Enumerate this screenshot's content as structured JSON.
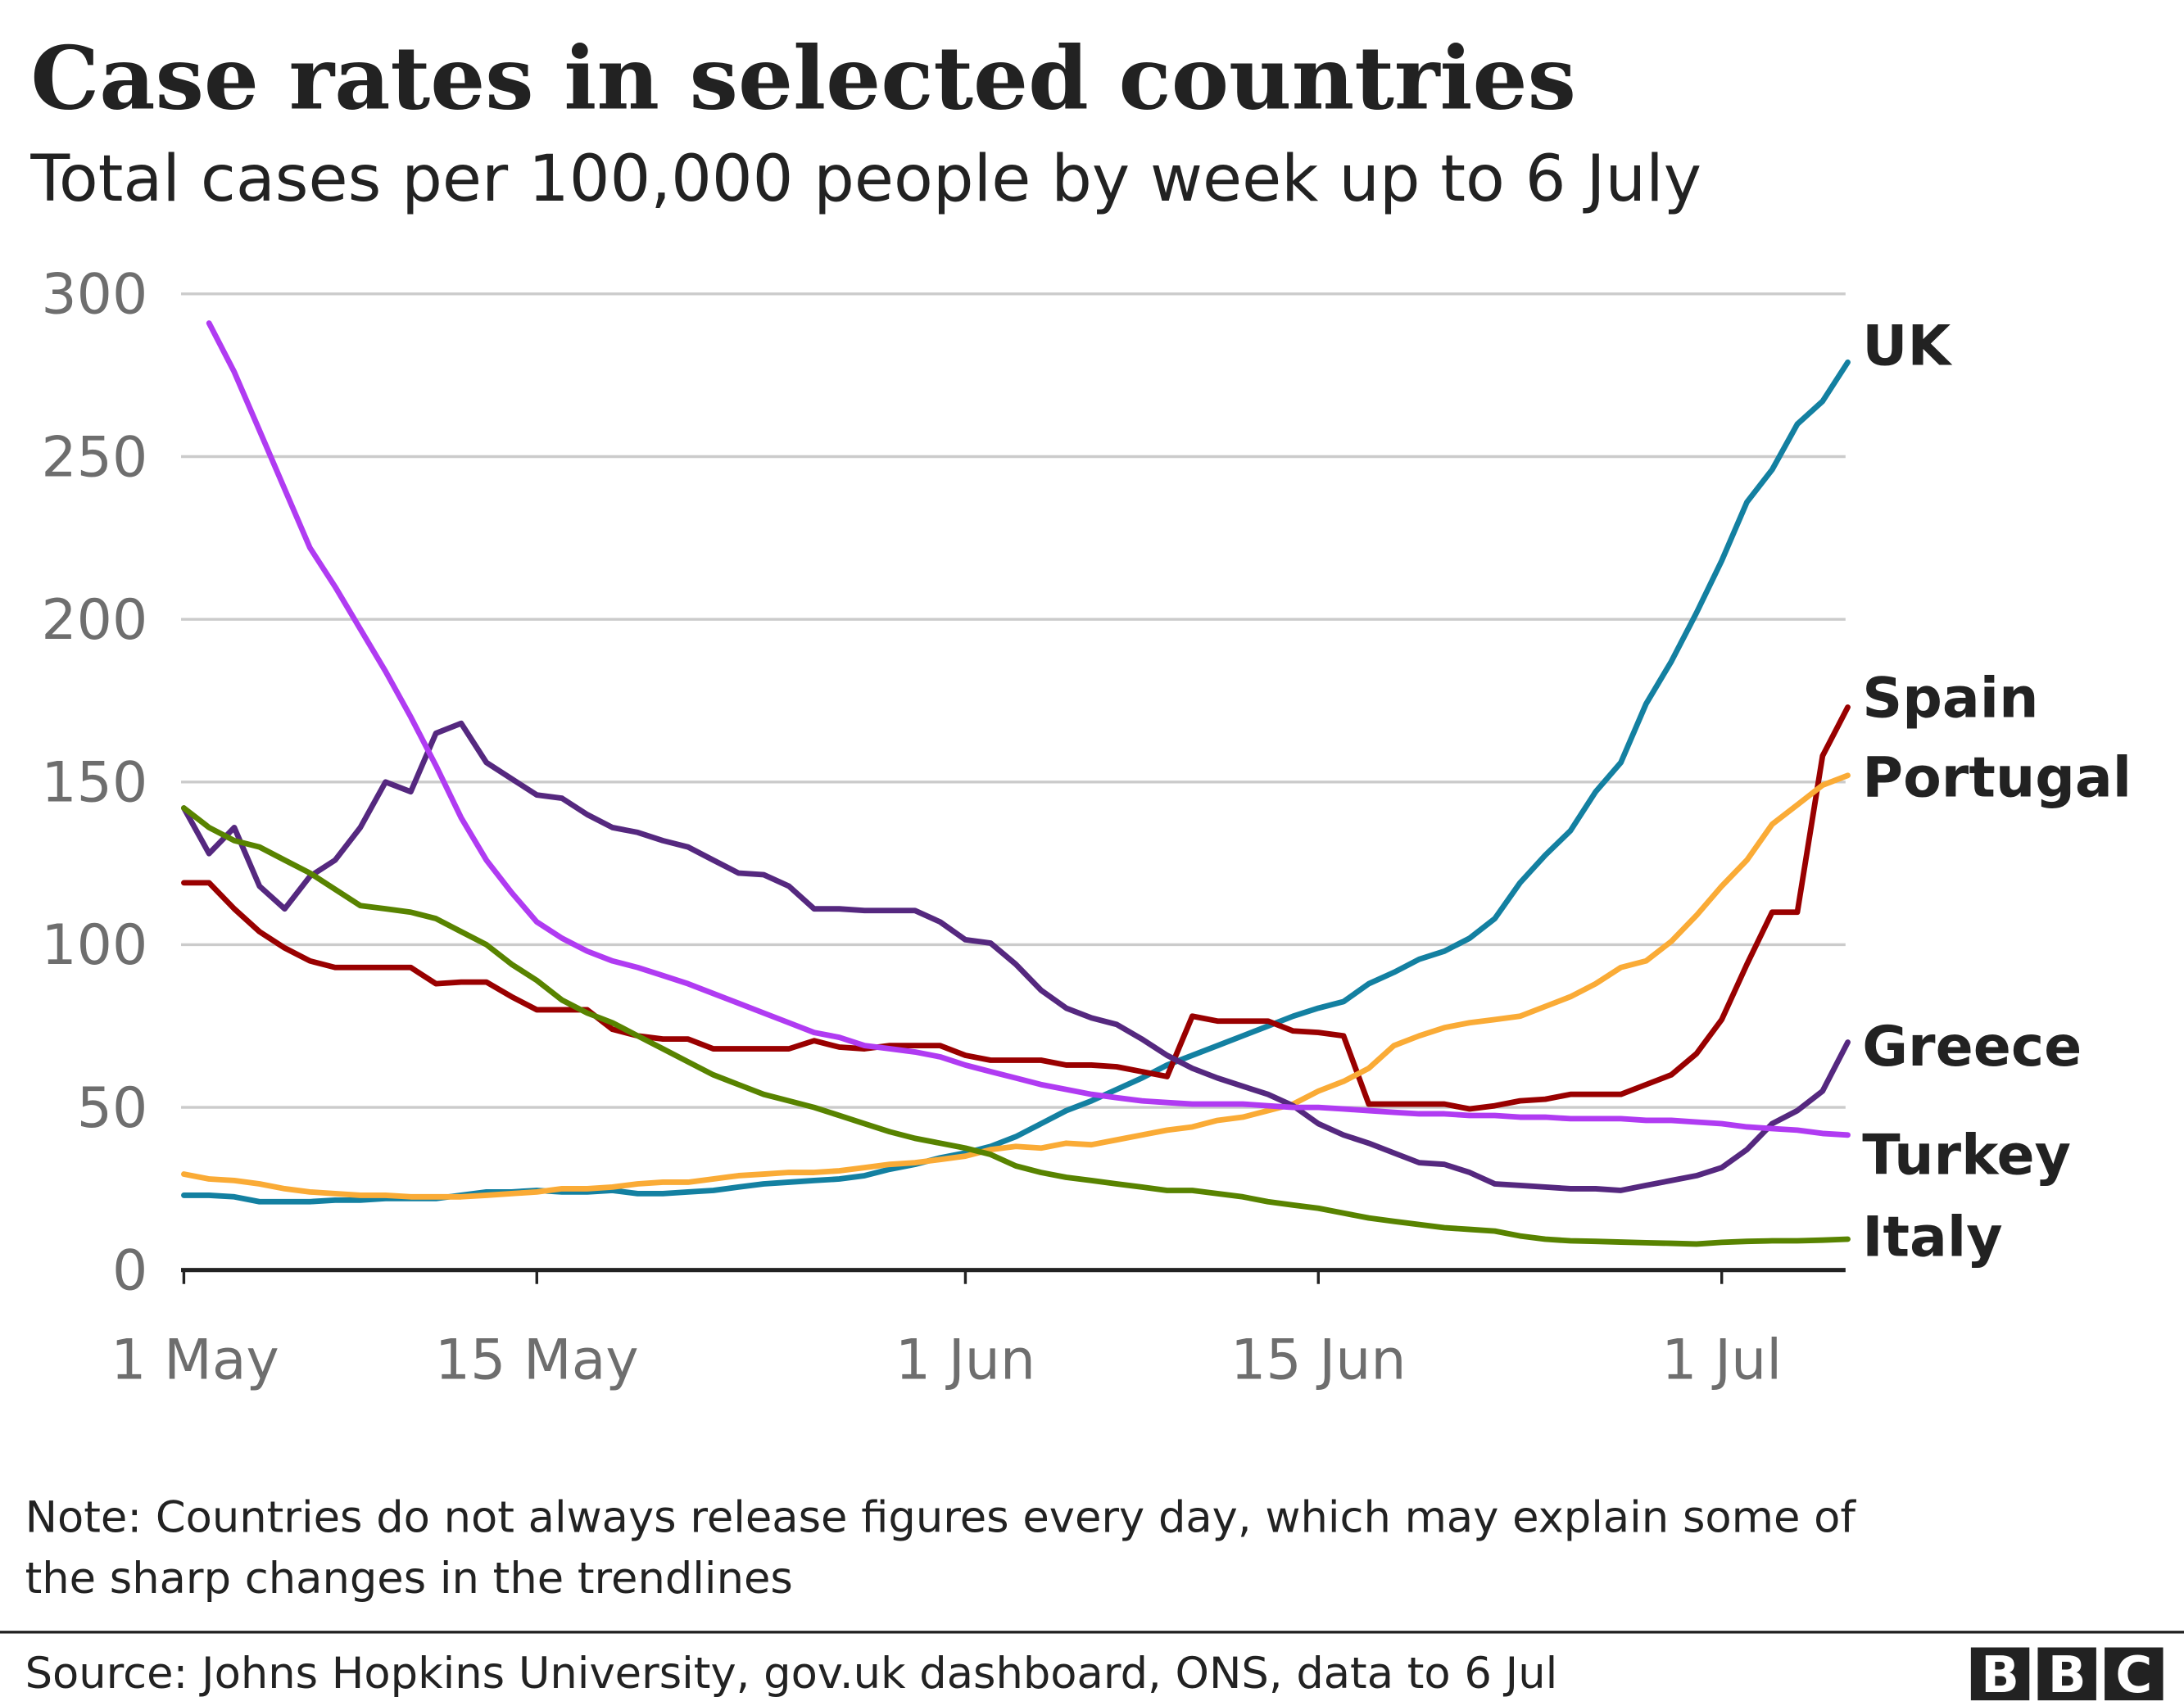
{
  "chart_data": {
    "type": "line",
    "title": "Case rates in selected countries",
    "subtitle": "Total cases per 100,000 people by week up to 6 July",
    "xlabel": "",
    "ylabel": "",
    "x_start_date": "1 May",
    "x_end_date": "6 Jul",
    "x_unit": "days since 1 May",
    "ylim": [
      0,
      300
    ],
    "yticks": [
      0,
      50,
      100,
      150,
      200,
      250,
      300
    ],
    "ytick_labels": [
      "0",
      "50",
      "100",
      "150",
      "200",
      "250",
      "300"
    ],
    "xticks": [
      0,
      14,
      31,
      45,
      61
    ],
    "xtick_labels": [
      "1 May",
      "15 May",
      "1 Jun",
      "15 Jun",
      "1 Jul"
    ],
    "grid": true,
    "legend": "direct labels at right end of lines",
    "series": [
      {
        "name": "UK",
        "color": "#1380A1",
        "values": [
          23,
          23,
          22.5,
          21,
          21,
          21,
          21.5,
          21.5,
          22,
          22,
          22,
          23,
          24,
          24,
          24.5,
          24,
          24,
          24.5,
          23.5,
          23.5,
          24,
          24.5,
          25.5,
          26.5,
          27,
          27.5,
          28,
          29,
          31,
          32.5,
          34.5,
          36,
          38,
          41,
          45,
          49,
          52,
          55.5,
          59,
          63,
          66,
          69,
          72,
          75,
          78,
          80.5,
          82.5,
          88,
          91.5,
          95.5,
          98,
          102,
          108,
          119,
          127.5,
          135,
          147,
          156,
          174,
          187,
          202,
          218,
          236,
          246,
          260,
          267,
          279
        ]
      },
      {
        "name": "Spain",
        "color": "#990000",
        "values": [
          119,
          119,
          111,
          104,
          99,
          95,
          93,
          93,
          93,
          93,
          88,
          88.5,
          88.5,
          84,
          80,
          80,
          80,
          74,
          72,
          71,
          71,
          68,
          68,
          68,
          68,
          70.5,
          68.5,
          68,
          69,
          69,
          69,
          66,
          64.5,
          64.5,
          64.5,
          63,
          63,
          62.5,
          61,
          59.5,
          78,
          76.5,
          76.5,
          76.5,
          73.5,
          73,
          72,
          51,
          51,
          51,
          51,
          49.5,
          50.5,
          52,
          52.5,
          54,
          54,
          54,
          57,
          60,
          66.5,
          77,
          94,
          110,
          110,
          158,
          173
        ]
      },
      {
        "name": "Portugal",
        "color": "#FAAB36",
        "values": [
          29.5,
          28,
          27.5,
          26.5,
          25,
          24,
          23.5,
          23,
          23,
          22.5,
          22.5,
          22.5,
          23,
          23.5,
          24,
          25,
          25,
          25.5,
          26.5,
          27,
          27,
          28,
          29,
          29.5,
          30,
          30,
          30.5,
          31.5,
          32.5,
          33,
          34,
          35,
          37,
          38,
          37.5,
          39,
          38.5,
          40,
          41.5,
          43,
          44,
          46,
          47,
          49,
          51,
          55,
          58,
          62,
          69,
          72,
          74.5,
          76,
          77,
          78,
          81,
          84,
          88,
          93,
          95,
          101,
          109,
          118,
          126,
          137,
          143,
          149,
          152
        ]
      },
      {
        "name": "Greece",
        "color": "#55287F",
        "values": [
          142,
          128,
          136,
          118,
          111,
          121,
          126,
          136,
          150,
          147,
          165,
          168,
          156,
          151,
          146,
          145,
          140,
          136,
          134.5,
          132,
          130,
          126,
          122,
          121.5,
          118,
          111,
          111,
          110.5,
          110.5,
          110.5,
          107,
          101.5,
          100.5,
          94,
          86,
          80.5,
          77.5,
          75.5,
          71,
          66,
          62,
          59,
          56.5,
          54,
          50.5,
          45,
          41.5,
          39,
          36,
          33,
          32.5,
          30,
          26.5,
          26,
          25.5,
          25,
          25,
          24.5,
          26,
          27.5,
          29,
          31.5,
          37,
          45,
          49,
          55,
          70
        ]
      },
      {
        "name": "Turkey",
        "color": "#B03BF2",
        "values": [
          null,
          291,
          276,
          258,
          240,
          222,
          210,
          197,
          184,
          170,
          155,
          139,
          126,
          116,
          107,
          102,
          98,
          95,
          93,
          90.5,
          88,
          85,
          82,
          79,
          76,
          73,
          71.5,
          69,
          68,
          67,
          65.5,
          63,
          61,
          59,
          57,
          55.5,
          54,
          53,
          52,
          51.5,
          51,
          51,
          51,
          50.5,
          50,
          50,
          49.5,
          49,
          48.5,
          48,
          48,
          47.5,
          47.5,
          47,
          47,
          46.5,
          46.5,
          46.5,
          46,
          46,
          45.5,
          45,
          44,
          43.5,
          43,
          42,
          41.5
        ]
      },
      {
        "name": "Italy",
        "color": "#588300",
        "values": [
          142,
          136,
          132,
          130,
          126,
          122,
          117,
          112,
          111,
          110,
          108,
          104,
          100,
          94,
          89,
          83,
          79,
          76,
          72,
          68,
          64,
          60,
          57,
          54,
          52,
          50,
          47.5,
          45,
          42.5,
          40.5,
          39,
          37.5,
          35.5,
          32,
          30,
          28.5,
          27.5,
          26.5,
          25.5,
          24.5,
          24.5,
          23.5,
          22.5,
          21,
          20,
          19,
          17.5,
          16,
          15,
          14,
          13,
          12.5,
          12,
          10.5,
          9.5,
          9,
          8.8,
          8.6,
          8.4,
          8.2,
          8,
          8.5,
          8.8,
          9,
          9,
          9.2,
          9.5
        ]
      }
    ]
  },
  "footer": {
    "note_line1": "Note: Countries do not always release figures every day, which may explain some of",
    "note_line2": "the sharp changes in the trendlines",
    "source": "Source: Johns Hopkins University, gov.uk dashboard, ONS, data to 6 Jul",
    "logo": "BBC"
  }
}
